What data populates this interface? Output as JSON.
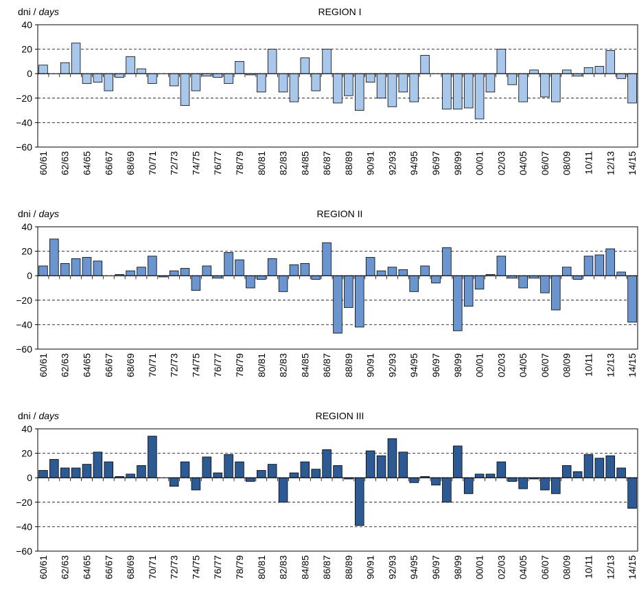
{
  "chart_data": [
    {
      "type": "bar",
      "title": "REGION I",
      "ylabel": "dni /",
      "ylabel_italic": "days",
      "color": "#a9c7ea",
      "categories": [
        "60/61",
        null,
        "62/63",
        null,
        "64/65",
        null,
        "66/67",
        null,
        "68/69",
        null,
        "70/71",
        null,
        "72/73",
        null,
        "74/75",
        null,
        "76/77",
        null,
        "78/79",
        null,
        "80/81",
        null,
        "82/83",
        null,
        "84/85",
        null,
        "86/87",
        null,
        "88/89",
        null,
        "90/91",
        null,
        "92/93",
        null,
        "94/95",
        null,
        "96/97",
        null,
        "98/99",
        null,
        "00/01",
        null,
        "02/03",
        null,
        "04/05",
        null,
        "06/07",
        null,
        "08/09",
        null,
        "10/11",
        null,
        "12/13",
        null,
        "14/15"
      ],
      "values": [
        7,
        0,
        9,
        25,
        -8,
        -7,
        -14,
        -3,
        14,
        4,
        -8,
        0,
        -10,
        -26,
        -14,
        -2,
        -3,
        -8,
        10,
        -1,
        -15,
        20,
        -15,
        -23,
        13,
        -14,
        20,
        -24,
        -18,
        -30,
        -7,
        -20,
        -27,
        -15,
        -23,
        15,
        0,
        -29,
        -29,
        -28,
        -37,
        -15,
        20,
        -9,
        -23,
        3,
        -19,
        -23,
        3,
        -2,
        5,
        6,
        19,
        -4,
        -24
      ],
      "ylim": [
        -60,
        40
      ],
      "yticks": [
        {
          "value": -60,
          "label": "−60"
        },
        {
          "value": -40,
          "label": "−40"
        },
        {
          "value": -20,
          "label": "−20"
        },
        0,
        20,
        40
      ],
      "grid": true
    },
    {
      "type": "bar",
      "title": "REGION II",
      "ylabel": "dni /",
      "ylabel_italic": "days",
      "color": "#6a95cf",
      "categories": [
        "60/61",
        null,
        "62/63",
        null,
        "64/65",
        null,
        "66/67",
        null,
        "68/69",
        null,
        "70/71",
        null,
        "72/73",
        null,
        "74/75",
        null,
        "76/77",
        null,
        "78/79",
        null,
        "80/81",
        null,
        "82/83",
        null,
        "84/85",
        null,
        "86/87",
        null,
        "88/89",
        null,
        "90/91",
        null,
        "92/93",
        null,
        "94/95",
        null,
        "96/97",
        null,
        "98/99",
        null,
        "00/01",
        null,
        "02/03",
        null,
        "04/05",
        null,
        "06/07",
        null,
        "08/09",
        null,
        "10/11",
        null,
        "12/13",
        null,
        "14/15"
      ],
      "values": [
        8,
        30,
        10,
        14,
        15,
        12,
        0,
        1,
        4,
        7,
        16,
        -1,
        4,
        6,
        -12,
        8,
        -2,
        19,
        13,
        -10,
        -3,
        14,
        -13,
        9,
        10,
        -3,
        27,
        -47,
        -26,
        -42,
        15,
        4,
        7,
        5,
        -13,
        8,
        -6,
        23,
        -45,
        -25,
        -11,
        1,
        16,
        -2,
        -10,
        -2,
        -14,
        -28,
        7,
        -3,
        16,
        17,
        22,
        3,
        -38
      ],
      "ylim": [
        -60,
        40
      ],
      "yticks": [
        {
          "value": -60,
          "label": "−60"
        },
        {
          "value": -40,
          "label": "−40"
        },
        {
          "value": -20,
          "label": "−20"
        },
        0,
        20,
        40
      ],
      "grid": true
    },
    {
      "type": "bar",
      "title": "REGION III",
      "ylabel": "dni /",
      "ylabel_italic": "days",
      "color": "#2d5a93",
      "categories": [
        "60/61",
        null,
        "62/63",
        null,
        "64/65",
        null,
        "66/67",
        null,
        "68/69",
        null,
        "70/71",
        null,
        "72/73",
        null,
        "74/75",
        null,
        "76/77",
        null,
        "78/79",
        null,
        "80/81",
        null,
        "82/83",
        null,
        "84/85",
        null,
        "86/87",
        null,
        "88/89",
        null,
        "90/91",
        null,
        "92/93",
        null,
        "94/95",
        null,
        "96/97",
        null,
        "98/99",
        null,
        "00/01",
        null,
        "02/03",
        null,
        "04/05",
        null,
        "06/07",
        null,
        "08/09",
        null,
        "10/11",
        null,
        "12/13",
        null,
        "14/15"
      ],
      "values": [
        6,
        15,
        8,
        8,
        11,
        21,
        13,
        1,
        3,
        10,
        34,
        0,
        -7,
        13,
        -10,
        17,
        4,
        19,
        13,
        -3,
        6,
        11,
        -20,
        4,
        13,
        7,
        23,
        10,
        -1,
        -39,
        22,
        18,
        32,
        21,
        -4,
        1,
        -6,
        -20,
        26,
        -13,
        3,
        3,
        13,
        -3,
        -9,
        -1,
        -10,
        -13,
        10,
        5,
        19,
        16,
        18,
        8,
        -25
      ],
      "ylim": [
        -60,
        40
      ],
      "yticks": [
        {
          "value": -60,
          "label": "−60"
        },
        {
          "value": -40,
          "label": "−40"
        },
        {
          "value": -20,
          "label": "−20"
        },
        0,
        20,
        40
      ],
      "grid": true
    }
  ]
}
